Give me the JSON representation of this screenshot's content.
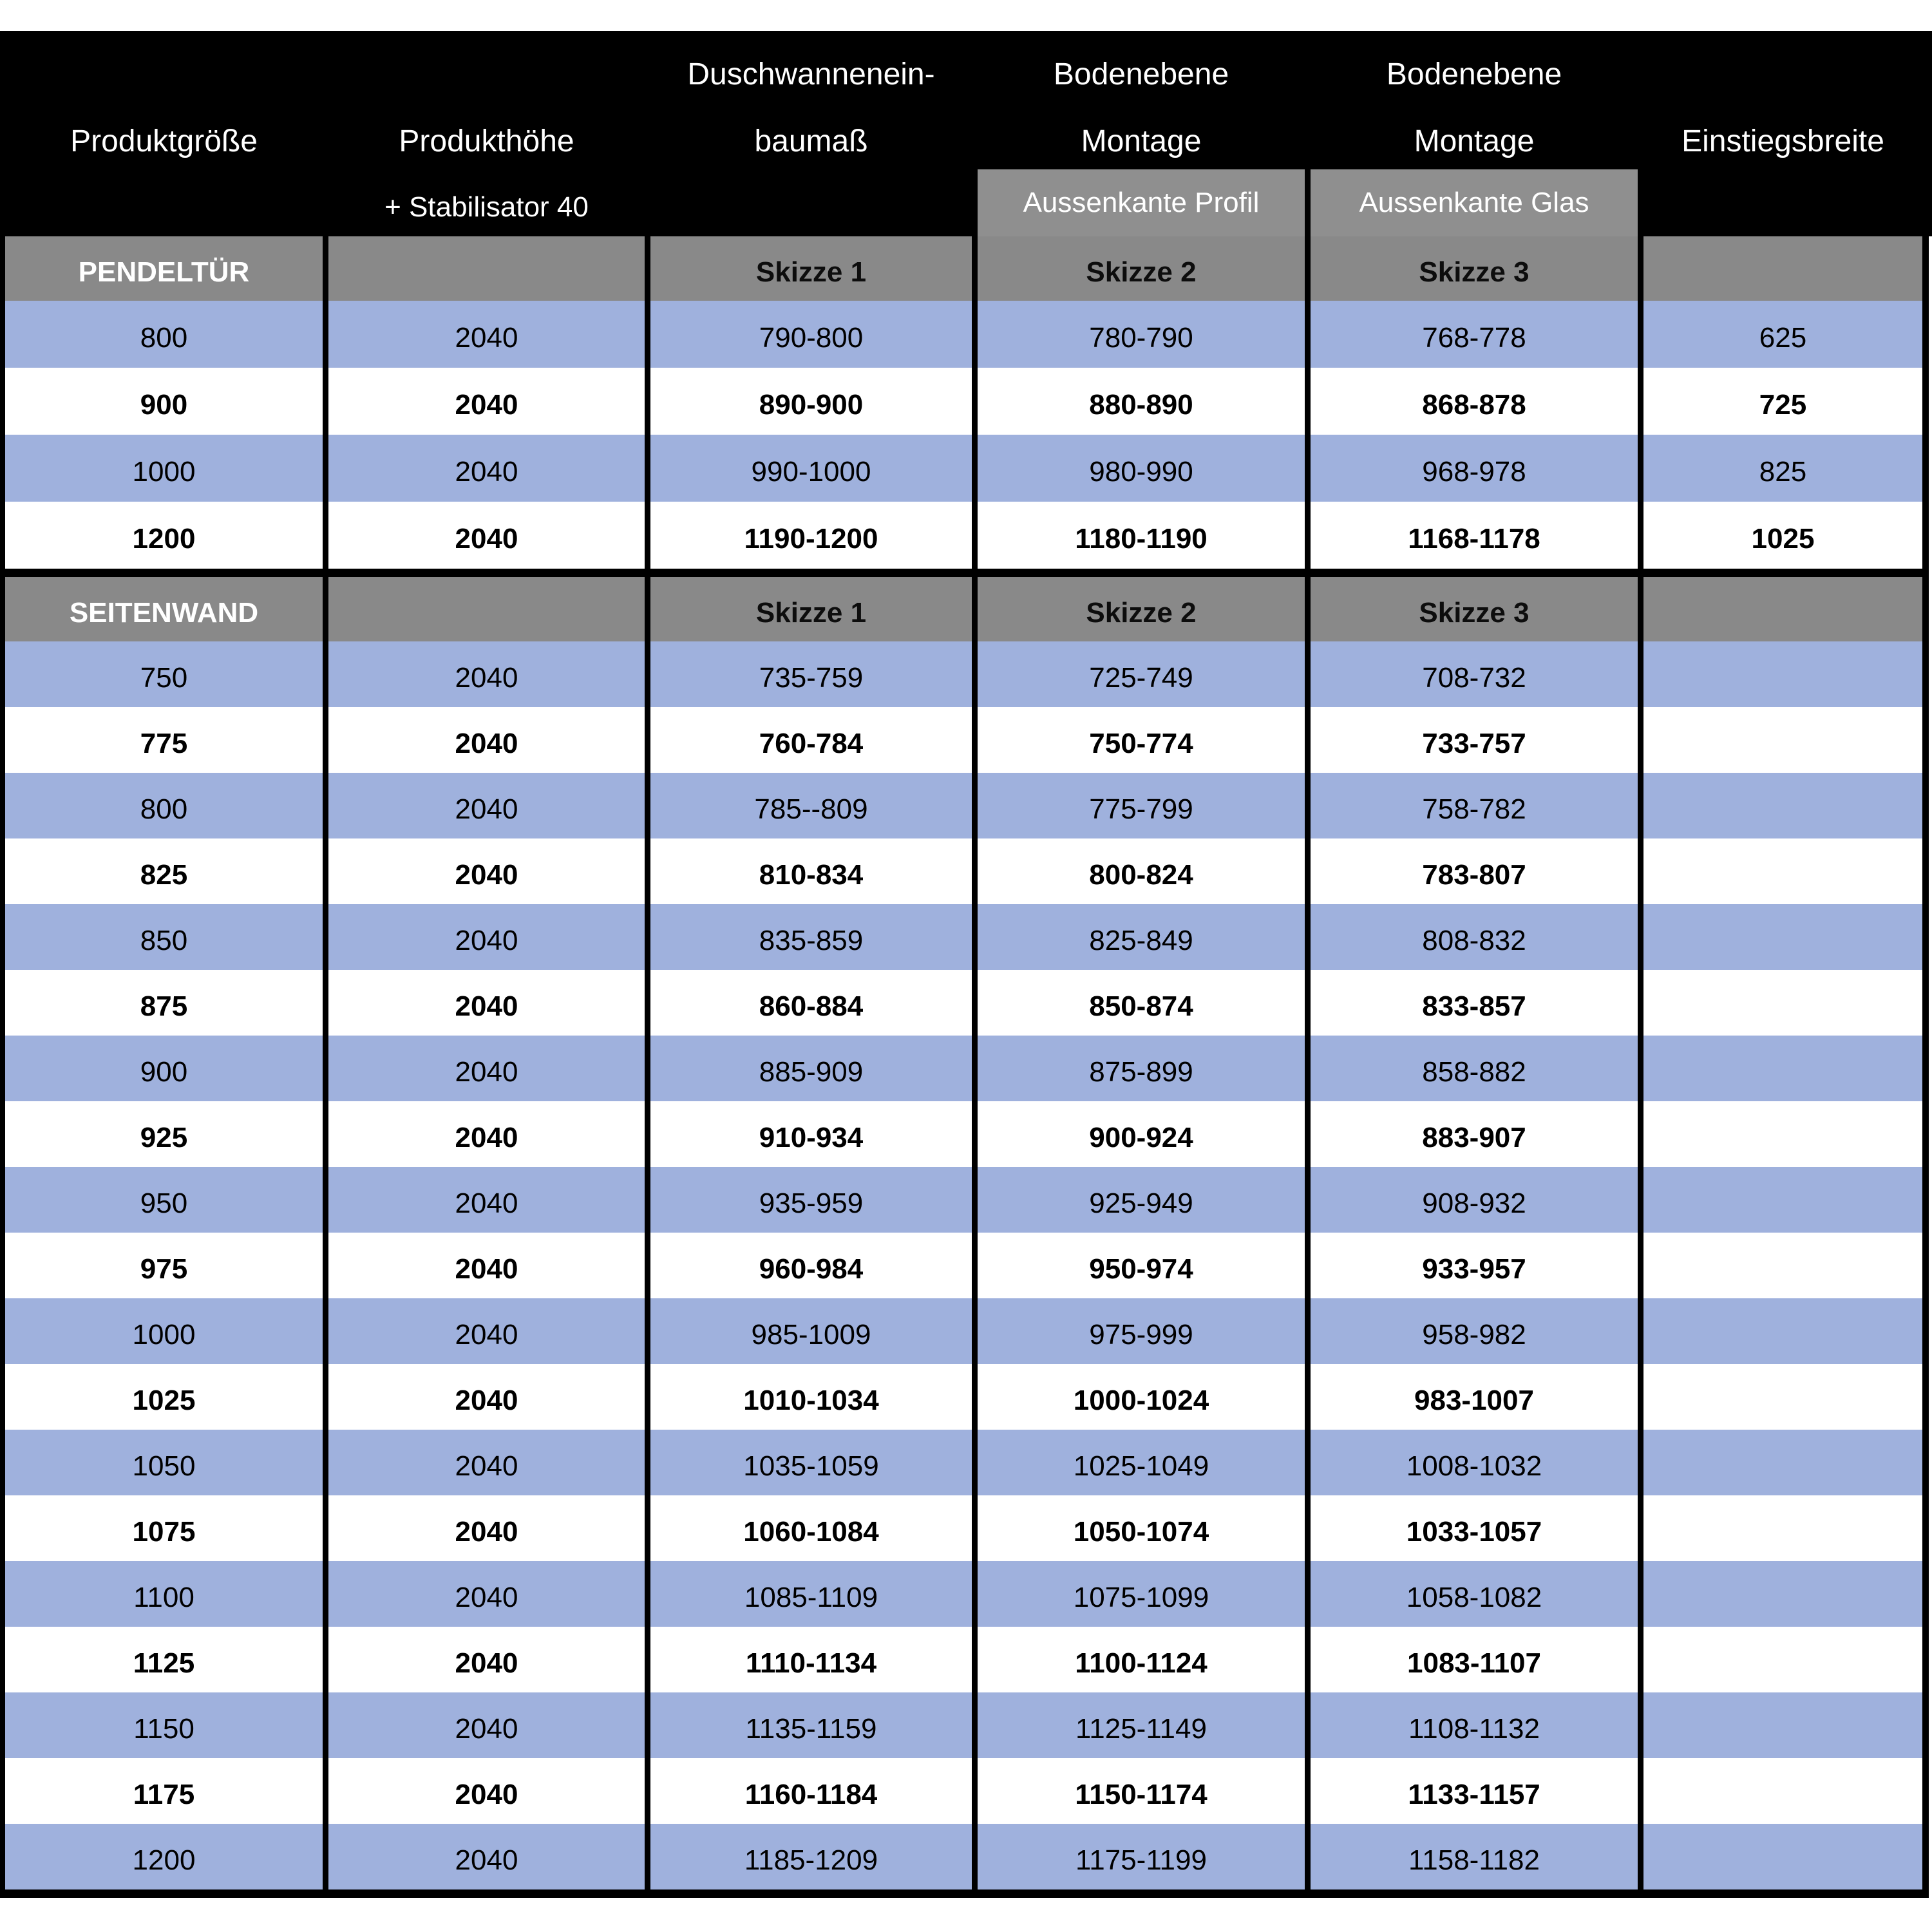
{
  "colors": {
    "header_bg": "#000000",
    "section_gray": "#898989",
    "subheader_gray": "#8f8f8f",
    "row_blue": "#9FB1DD",
    "row_white": "#ffffff",
    "header_text": "#ffffff"
  },
  "header": {
    "col1_line2": "Produktgröße",
    "col2_line2": "Produkthöhe",
    "col2_line3": "+ Stabilisator 40",
    "col3_line1": "Duschwannenein-",
    "col3_line2": "baumaß",
    "col4_line1": "Bodenebene",
    "col4_line2": "Montage",
    "col4_sub": "Aussenkante Profil",
    "col5_line1": "Bodenebene",
    "col5_line2": "Montage",
    "col5_sub": "Aussenkante Glas",
    "col6_line2": "Einstiegsbreite"
  },
  "sections": [
    {
      "label": "PENDELTÜR",
      "skizze": [
        "Skizze 1",
        "Skizze 2",
        "Skizze 3"
      ],
      "row_class": "d1",
      "rows": [
        {
          "cells": [
            "800",
            "2040",
            "790-800",
            "780-790",
            "768-778",
            "625"
          ],
          "shade": "blue"
        },
        {
          "cells": [
            "900",
            "2040",
            "890-900",
            "880-890",
            "868-878",
            "725"
          ],
          "shade": "white"
        },
        {
          "cells": [
            "1000",
            "2040",
            "990-1000",
            "980-990",
            "968-978",
            "825"
          ],
          "shade": "blue"
        },
        {
          "cells": [
            "1200",
            "2040",
            "1190-1200",
            "1180-1190",
            "1168-1178",
            "1025"
          ],
          "shade": "white"
        }
      ]
    },
    {
      "label": "SEITENWAND",
      "skizze": [
        "Skizze 1",
        "Skizze 2",
        "Skizze 3"
      ],
      "row_class": "d2",
      "rows": [
        {
          "cells": [
            "750",
            "2040",
            "735-759",
            "725-749",
            "708-732",
            ""
          ],
          "shade": "blue"
        },
        {
          "cells": [
            "775",
            "2040",
            "760-784",
            "750-774",
            "733-757",
            ""
          ],
          "shade": "white"
        },
        {
          "cells": [
            "800",
            "2040",
            "785--809",
            "775-799",
            "758-782",
            ""
          ],
          "shade": "blue"
        },
        {
          "cells": [
            "825",
            "2040",
            "810-834",
            "800-824",
            "783-807",
            ""
          ],
          "shade": "white"
        },
        {
          "cells": [
            "850",
            "2040",
            "835-859",
            "825-849",
            "808-832",
            ""
          ],
          "shade": "blue"
        },
        {
          "cells": [
            "875",
            "2040",
            "860-884",
            "850-874",
            "833-857",
            ""
          ],
          "shade": "white"
        },
        {
          "cells": [
            "900",
            "2040",
            "885-909",
            "875-899",
            "858-882",
            ""
          ],
          "shade": "blue"
        },
        {
          "cells": [
            "925",
            "2040",
            "910-934",
            "900-924",
            "883-907",
            ""
          ],
          "shade": "white"
        },
        {
          "cells": [
            "950",
            "2040",
            "935-959",
            "925-949",
            "908-932",
            ""
          ],
          "shade": "blue"
        },
        {
          "cells": [
            "975",
            "2040",
            "960-984",
            "950-974",
            "933-957",
            ""
          ],
          "shade": "white"
        },
        {
          "cells": [
            "1000",
            "2040",
            "985-1009",
            "975-999",
            "958-982",
            ""
          ],
          "shade": "blue"
        },
        {
          "cells": [
            "1025",
            "2040",
            "1010-1034",
            "1000-1024",
            "983-1007",
            ""
          ],
          "shade": "white"
        },
        {
          "cells": [
            "1050",
            "2040",
            "1035-1059",
            "1025-1049",
            "1008-1032",
            ""
          ],
          "shade": "blue"
        },
        {
          "cells": [
            "1075",
            "2040",
            "1060-1084",
            "1050-1074",
            "1033-1057",
            ""
          ],
          "shade": "white"
        },
        {
          "cells": [
            "1100",
            "2040",
            "1085-1109",
            "1075-1099",
            "1058-1082",
            ""
          ],
          "shade": "blue"
        },
        {
          "cells": [
            "1125",
            "2040",
            "1110-1134",
            "1100-1124",
            "1083-1107",
            ""
          ],
          "shade": "white"
        },
        {
          "cells": [
            "1150",
            "2040",
            "1135-1159",
            "1125-1149",
            "1108-1132",
            ""
          ],
          "shade": "blue"
        },
        {
          "cells": [
            "1175",
            "2040",
            "1160-1184",
            "1150-1174",
            "1133-1157",
            ""
          ],
          "shade": "white"
        },
        {
          "cells": [
            "1200",
            "2040",
            "1185-1209",
            "1175-1199",
            "1158-1182",
            ""
          ],
          "shade": "blue"
        }
      ]
    }
  ]
}
